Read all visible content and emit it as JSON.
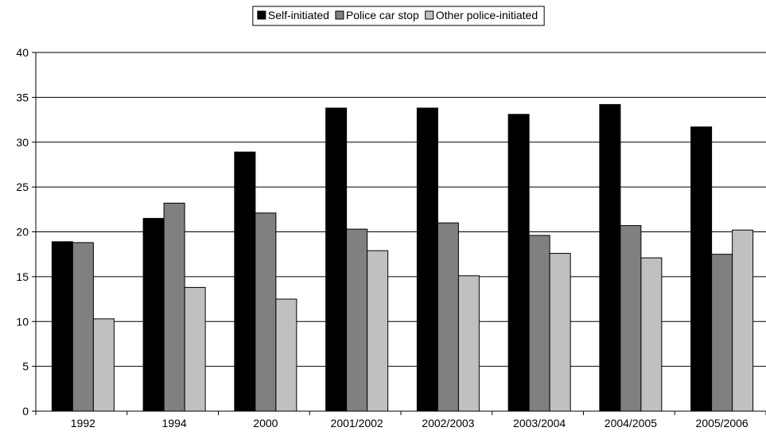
{
  "chart_data": {
    "type": "bar",
    "categories": [
      "1992",
      "1994",
      "2000",
      "2001/2002",
      "2002/2003",
      "2003/2004",
      "2004/2005",
      "2005/2006"
    ],
    "series": [
      {
        "name": "Self-initiated",
        "color": "#000000",
        "values": [
          18.9,
          21.5,
          28.9,
          33.8,
          33.8,
          33.1,
          34.2,
          31.7
        ]
      },
      {
        "name": "Police car stop",
        "color": "#808080",
        "values": [
          18.8,
          23.2,
          22.1,
          20.3,
          21.0,
          19.6,
          20.7,
          17.5
        ]
      },
      {
        "name": "Other police-initiated",
        "color": "#c0c0c0",
        "values": [
          10.3,
          13.8,
          12.5,
          17.9,
          15.1,
          17.6,
          17.1,
          20.2
        ]
      }
    ],
    "ylim": [
      0,
      40
    ],
    "yticks": [
      0,
      5,
      10,
      15,
      20,
      25,
      30,
      35,
      40
    ],
    "grid": true,
    "legend": "top-center"
  }
}
